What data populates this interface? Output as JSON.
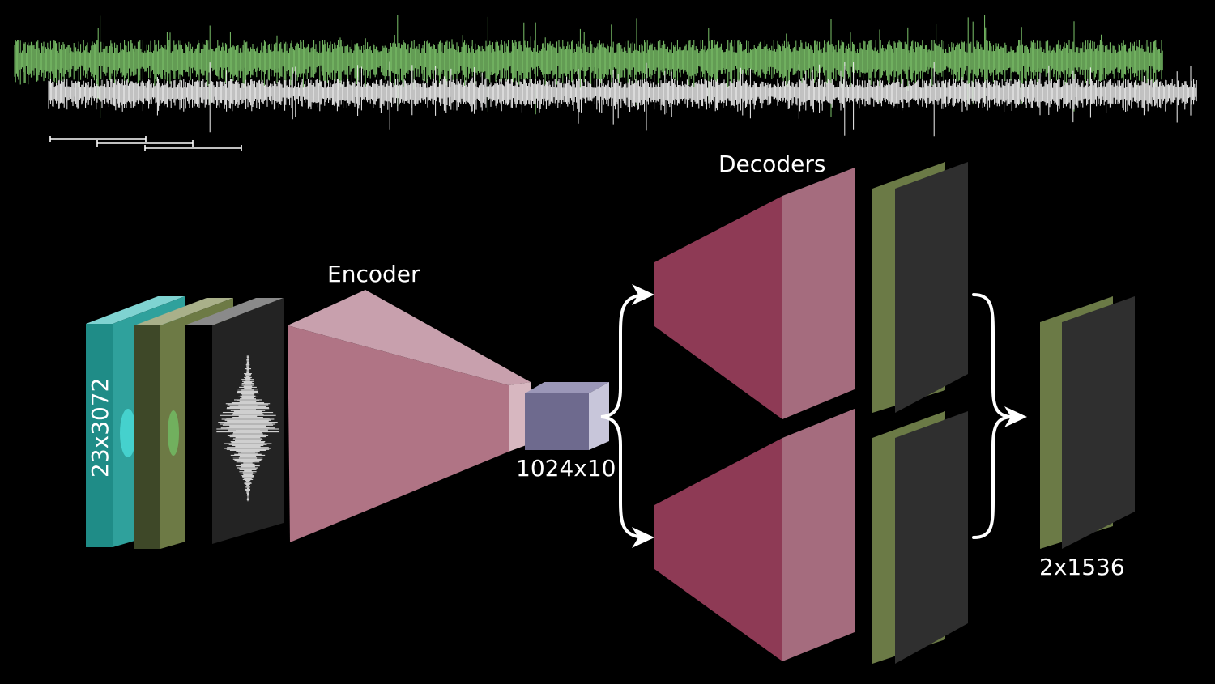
{
  "labels": {
    "input_shape": "23x3072",
    "encoder": "Encoder",
    "latent_shape": "1024x10",
    "decoders": "Decoders",
    "output_shape": "2x1536"
  },
  "colors": {
    "background": "#000000",
    "signal_green": "#7cc36a",
    "signal_white": "#f2f2f2",
    "input_teal": "#1f8c87",
    "input_olive": "#5c6a3a",
    "input_gray": "#2b2b2b",
    "encoder_pink": "#b07485",
    "latent_lavender": "#6e6a8e",
    "decoder_crimson": "#8e3a55",
    "decoder_pink": "#a56c7e",
    "output_olive": "#6b7a46",
    "output_dark": "#2f2f2f"
  }
}
